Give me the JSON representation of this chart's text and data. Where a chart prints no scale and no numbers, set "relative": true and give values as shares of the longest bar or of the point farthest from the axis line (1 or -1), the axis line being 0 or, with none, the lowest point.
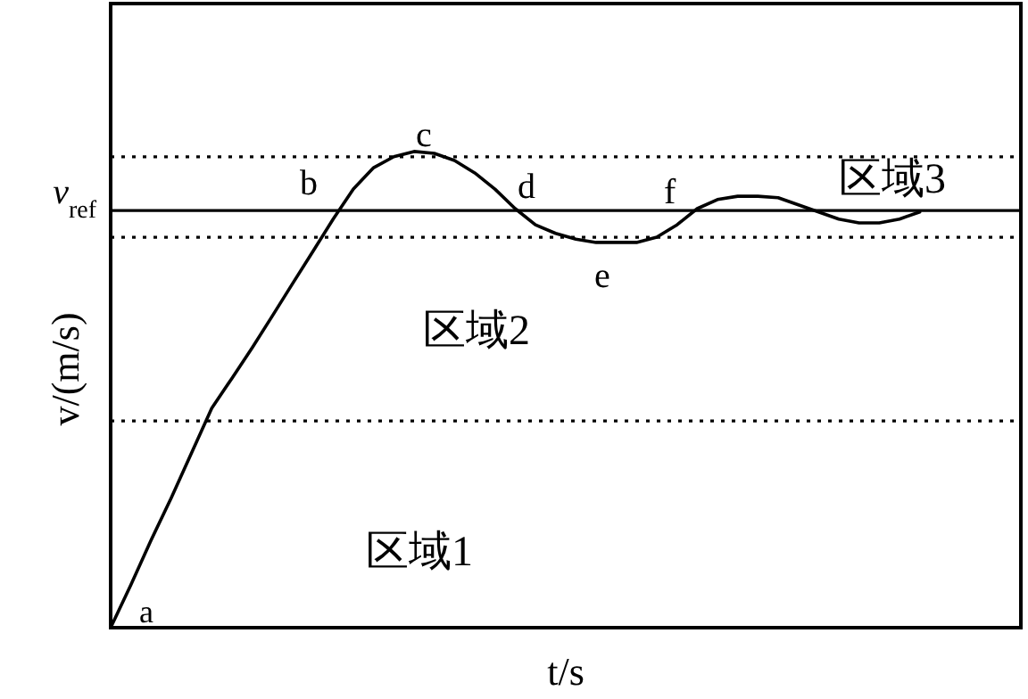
{
  "chart_data": {
    "type": "line",
    "relative": true,
    "xlabel": "t/s",
    "ylabel": "v/(m/s)",
    "line_style": "solid",
    "categories": [
      null,
      null,
      null,
      null,
      null,
      null,
      null,
      null,
      null,
      null,
      null,
      null,
      null,
      null,
      null,
      null,
      null,
      null,
      null,
      null,
      null,
      null,
      null,
      null,
      null,
      null,
      null,
      null,
      null,
      null,
      null,
      null,
      null,
      null,
      null,
      null,
      null,
      null,
      null,
      null,
      null,
      null,
      null,
      null,
      null,
      null
    ],
    "series": [
      {
        "color": "#000000",
        "values": [
          0,
          0.09,
          0.184,
          0.273,
          0.367,
          0.461,
          0.524,
          0.588,
          0.655,
          0.723,
          0.79,
          0.858,
          0.921,
          0.966,
          0.989,
          1,
          0.996,
          0.981,
          0.955,
          0.921,
          0.88,
          0.846,
          0.828,
          0.816,
          0.809,
          0.809,
          0.809,
          0.82,
          0.846,
          0.88,
          0.899,
          0.906,
          0.906,
          0.903,
          0.888,
          0.873,
          0.858,
          0.85,
          0.85,
          0.858,
          0.873,
          null,
          null,
          null,
          null,
          null
        ]
      }
    ],
    "ref_lines": [
      {
        "axis": "y",
        "value": 0.876,
        "label": "v$_{ref}$",
        "color": "#000000",
        "line_style": "solid"
      },
      {
        "axis": "y",
        "value": 0.989,
        "color": "#000000",
        "line_style": "dotted"
      },
      {
        "axis": "y",
        "value": 0.82,
        "color": "#000000",
        "line_style": "dotted"
      },
      {
        "axis": "y",
        "value": 0.434,
        "color": "#000000",
        "line_style": "dotted"
      }
    ],
    "annotations": [
      "a",
      "b",
      "c",
      "d",
      "e",
      "f",
      "区域1",
      "区域2",
      "区域3"
    ]
  }
}
